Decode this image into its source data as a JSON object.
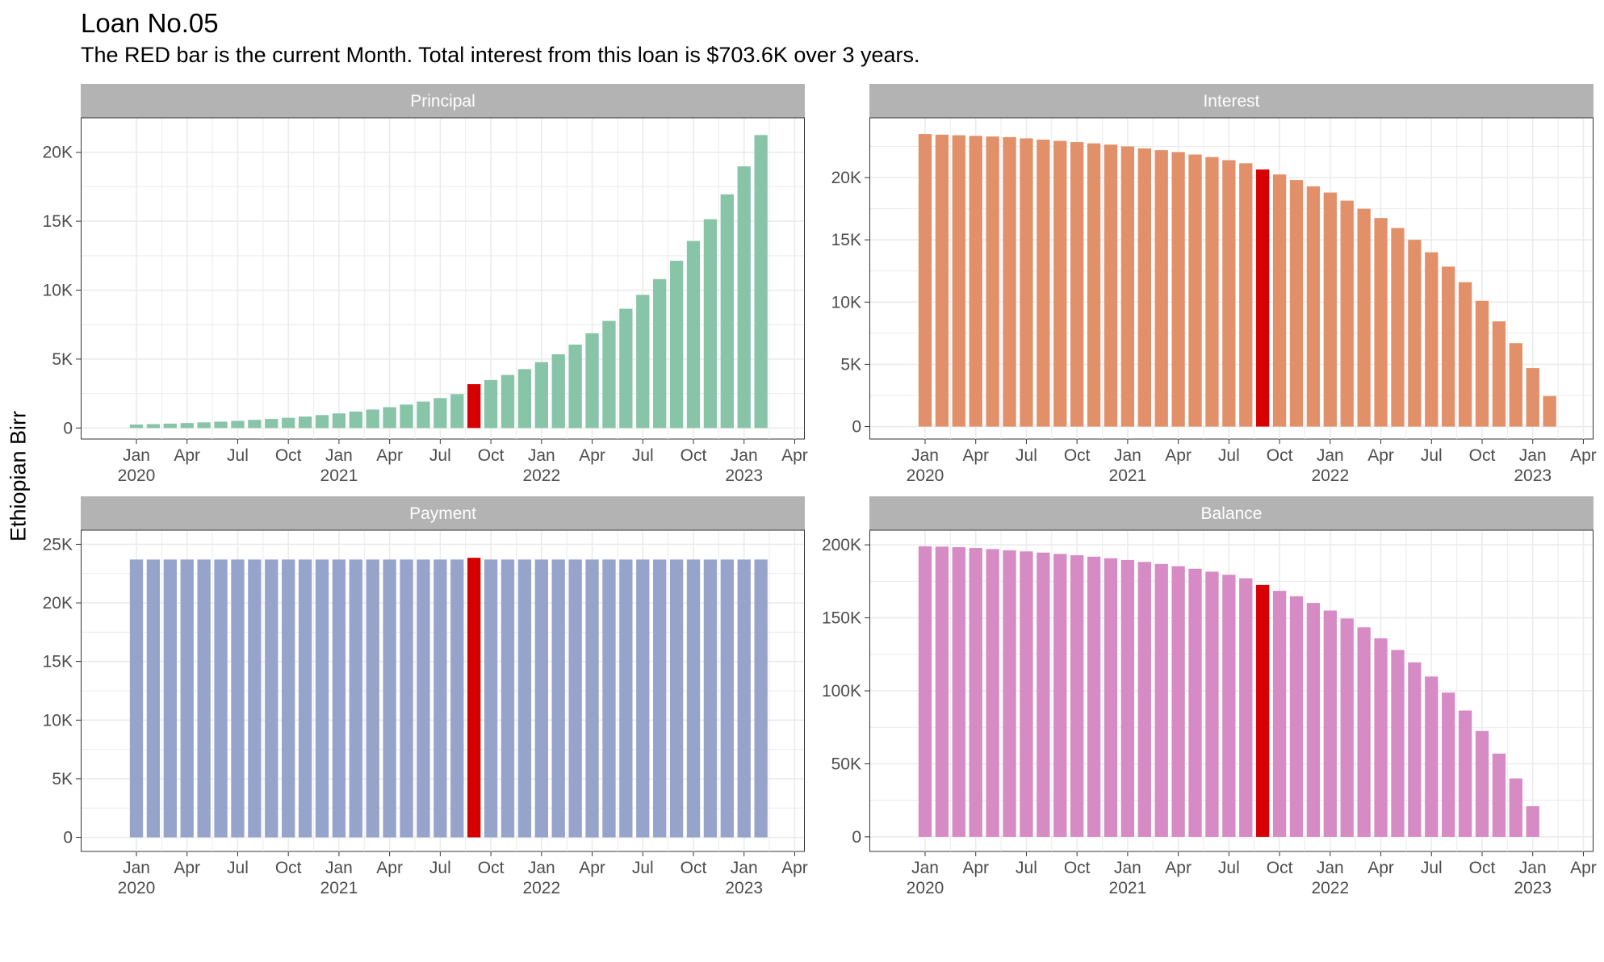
{
  "title": "Loan No.05",
  "subtitle": "The RED bar is the current Month. Total interest from this loan is $703.6K over 3 years.",
  "ylabel": "Ethiopian Birr",
  "colors": {
    "highlight": "#d70000",
    "strip_bg": "#b3b3b3",
    "grid": "#ebebeb",
    "Principal": "#88c4a8",
    "Interest": "#e2906a",
    "Payment": "#96a3cb",
    "Balance": "#d68bc4"
  },
  "chart_data": [
    {
      "type": "bar",
      "facet": "Principal",
      "x_start": "2020-01",
      "highlight_index": 20,
      "ylim": [
        -800,
        22500
      ],
      "yticks": [
        0,
        5000,
        10000,
        15000,
        20000
      ],
      "ytick_labels": [
        "0",
        "5K",
        "10K",
        "15K",
        "20K"
      ],
      "xtick_labels": [
        "Jan\n2020",
        "Apr",
        "Jul",
        "Oct",
        "Jan\n2021",
        "Apr",
        "Jul",
        "Oct",
        "Jan\n2022",
        "Apr",
        "Jul",
        "Oct",
        "Jan\n2023",
        "Apr"
      ],
      "values": [
        250,
        280,
        320,
        360,
        410,
        460,
        520,
        590,
        660,
        740,
        830,
        940,
        1060,
        1190,
        1340,
        1510,
        1700,
        1920,
        2170,
        2460,
        3180,
        3480,
        3850,
        4270,
        4780,
        5350,
        6050,
        6870,
        7770,
        8650,
        9660,
        10800,
        12130,
        13570,
        15150,
        16950,
        18980,
        21250
      ]
    },
    {
      "type": "bar",
      "facet": "Interest",
      "x_start": "2020-01",
      "highlight_index": 20,
      "ylim": [
        -1000,
        24800
      ],
      "yticks": [
        0,
        5000,
        10000,
        15000,
        20000
      ],
      "ytick_labels": [
        "0",
        "5K",
        "10K",
        "15K",
        "20K"
      ],
      "xtick_labels": [
        "Jan\n2020",
        "Apr",
        "Jul",
        "Oct",
        "Jan\n2021",
        "Apr",
        "Jul",
        "Oct",
        "Jan\n2022",
        "Apr",
        "Jul",
        "Oct",
        "Jan\n2023",
        "Apr"
      ],
      "values": [
        23500,
        23450,
        23400,
        23350,
        23300,
        23250,
        23150,
        23050,
        22950,
        22850,
        22750,
        22650,
        22500,
        22350,
        22200,
        22050,
        21850,
        21650,
        21400,
        21150,
        20650,
        20250,
        19800,
        19300,
        18800,
        18150,
        17500,
        16750,
        15950,
        15000,
        14000,
        12850,
        11600,
        10100,
        8450,
        6700,
        4700,
        2450
      ]
    },
    {
      "type": "bar",
      "facet": "Payment",
      "x_start": "2020-01",
      "highlight_index": 20,
      "ylim": [
        -1200,
        26200
      ],
      "yticks": [
        0,
        5000,
        10000,
        15000,
        20000,
        25000
      ],
      "ytick_labels": [
        "0",
        "5K",
        "10K",
        "15K",
        "20K",
        "25K"
      ],
      "xtick_labels": [
        "Jan\n2020",
        "Apr",
        "Jul",
        "Oct",
        "Jan\n2021",
        "Apr",
        "Jul",
        "Oct",
        "Jan\n2022",
        "Apr",
        "Jul",
        "Oct",
        "Jan\n2023",
        "Apr"
      ],
      "values": [
        23700,
        23700,
        23700,
        23700,
        23700,
        23700,
        23700,
        23700,
        23700,
        23700,
        23700,
        23700,
        23700,
        23700,
        23700,
        23700,
        23700,
        23700,
        23700,
        23700,
        23850,
        23700,
        23700,
        23700,
        23700,
        23700,
        23700,
        23700,
        23700,
        23700,
        23700,
        23700,
        23700,
        23700,
        23700,
        23700,
        23700,
        23700
      ]
    },
    {
      "type": "bar",
      "facet": "Balance",
      "x_start": "2020-01",
      "highlight_index": 20,
      "ylim": [
        -10000,
        210000
      ],
      "yticks": [
        0,
        50000,
        100000,
        150000,
        200000
      ],
      "ytick_labels": [
        "0",
        "50K",
        "100K",
        "150K",
        "200K"
      ],
      "xtick_labels": [
        "Jan\n2020",
        "Apr",
        "Jul",
        "Oct",
        "Jan\n2021",
        "Apr",
        "Jul",
        "Oct",
        "Jan\n2022",
        "Apr",
        "Jul",
        "Oct",
        "Jan\n2023",
        "Apr"
      ],
      "values": [
        199000,
        198800,
        198400,
        197800,
        197100,
        196300,
        195500,
        194700,
        193800,
        192900,
        191900,
        190800,
        189600,
        188300,
        186900,
        185400,
        183600,
        181600,
        179500,
        177100,
        172500,
        168500,
        164800,
        160200,
        155000,
        149500,
        143500,
        136000,
        128000,
        119500,
        109800,
        98800,
        86500,
        72500,
        57000,
        40000,
        21000,
        0
      ]
    }
  ]
}
